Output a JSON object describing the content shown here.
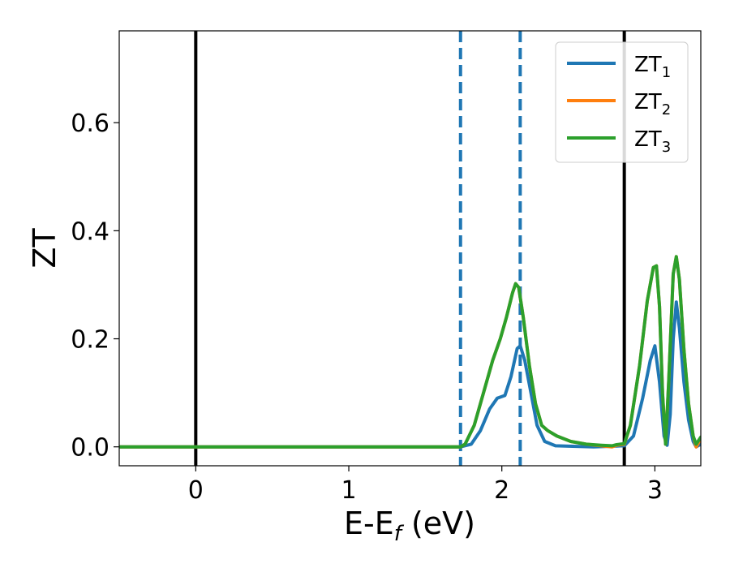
{
  "chart_data": {
    "type": "line",
    "title": "",
    "xlabel": "E-E",
    "xlabel_sub": "f",
    "xlabel_unit": " (eV)",
    "ylabel": "ZT",
    "xlim": [
      -0.5,
      3.3
    ],
    "ylim": [
      -0.035,
      0.77
    ],
    "x_ticks": [
      0,
      1,
      2,
      3
    ],
    "x_tick_labels": [
      "0",
      "1",
      "2",
      "3"
    ],
    "y_ticks": [
      0.0,
      0.2,
      0.4,
      0.6
    ],
    "y_tick_labels": [
      "0.0",
      "0.2",
      "0.4",
      "0.6"
    ],
    "grid": false,
    "legend": {
      "position": "top-right",
      "entries": [
        {
          "label": "ZT",
          "sub": "1"
        },
        {
          "label": "ZT",
          "sub": "2"
        },
        {
          "label": "ZT",
          "sub": "3"
        }
      ]
    },
    "reference_lines": {
      "solid_black_x": [
        0.0,
        2.8
      ],
      "dashed_blue_x": [
        1.73,
        2.12
      ]
    },
    "series": [
      {
        "name": "ZT1",
        "color": "#1f77b4",
        "points": [
          [
            -0.5,
            0
          ],
          [
            1.73,
            0
          ],
          [
            1.8,
            0.005
          ],
          [
            1.86,
            0.03
          ],
          [
            1.92,
            0.07
          ],
          [
            1.97,
            0.09
          ],
          [
            2.02,
            0.095
          ],
          [
            2.06,
            0.13
          ],
          [
            2.1,
            0.182
          ],
          [
            2.12,
            0.187
          ],
          [
            2.15,
            0.16
          ],
          [
            2.19,
            0.1
          ],
          [
            2.23,
            0.04
          ],
          [
            2.28,
            0.01
          ],
          [
            2.35,
            0.002
          ],
          [
            2.6,
            0
          ],
          [
            2.8,
            0.002
          ],
          [
            2.86,
            0.02
          ],
          [
            2.92,
            0.09
          ],
          [
            2.97,
            0.16
          ],
          [
            3.0,
            0.187
          ],
          [
            3.03,
            0.12
          ],
          [
            3.06,
            0.02
          ],
          [
            3.08,
            0.003
          ],
          [
            3.1,
            0.06
          ],
          [
            3.12,
            0.2
          ],
          [
            3.14,
            0.268
          ],
          [
            3.16,
            0.22
          ],
          [
            3.19,
            0.12
          ],
          [
            3.22,
            0.05
          ],
          [
            3.25,
            0.01
          ],
          [
            3.27,
            0
          ],
          [
            3.3,
            0.005
          ]
        ]
      },
      {
        "name": "ZT2",
        "color": "#ff7f0e",
        "points": [
          [
            -0.5,
            0
          ],
          [
            1.73,
            0
          ],
          [
            1.76,
            0.005
          ],
          [
            1.82,
            0.04
          ],
          [
            1.88,
            0.1
          ],
          [
            1.94,
            0.16
          ],
          [
            1.99,
            0.2
          ],
          [
            2.03,
            0.24
          ],
          [
            2.07,
            0.285
          ],
          [
            2.09,
            0.302
          ],
          [
            2.11,
            0.295
          ],
          [
            2.14,
            0.24
          ],
          [
            2.18,
            0.15
          ],
          [
            2.22,
            0.08
          ],
          [
            2.26,
            0.04
          ],
          [
            2.3,
            0.03
          ],
          [
            2.36,
            0.02
          ],
          [
            2.45,
            0.01
          ],
          [
            2.55,
            0.005
          ],
          [
            2.65,
            0.002
          ],
          [
            2.72,
            0
          ],
          [
            2.75,
            0.003
          ],
          [
            2.8,
            0.005
          ],
          [
            2.84,
            0.04
          ],
          [
            2.9,
            0.15
          ],
          [
            2.95,
            0.27
          ],
          [
            2.99,
            0.332
          ],
          [
            3.01,
            0.335
          ],
          [
            3.03,
            0.26
          ],
          [
            3.05,
            0.1
          ],
          [
            3.07,
            0.005
          ],
          [
            3.09,
            0.12
          ],
          [
            3.12,
            0.32
          ],
          [
            3.14,
            0.352
          ],
          [
            3.16,
            0.31
          ],
          [
            3.19,
            0.18
          ],
          [
            3.22,
            0.08
          ],
          [
            3.25,
            0.02
          ],
          [
            3.27,
            0
          ],
          [
            3.3,
            0.015
          ]
        ]
      },
      {
        "name": "ZT3",
        "color": "#2ca02c",
        "points": [
          [
            -0.5,
            0
          ],
          [
            1.73,
            0
          ],
          [
            1.76,
            0.005
          ],
          [
            1.82,
            0.04
          ],
          [
            1.88,
            0.1
          ],
          [
            1.94,
            0.16
          ],
          [
            1.99,
            0.2
          ],
          [
            2.03,
            0.24
          ],
          [
            2.07,
            0.285
          ],
          [
            2.09,
            0.302
          ],
          [
            2.11,
            0.295
          ],
          [
            2.14,
            0.24
          ],
          [
            2.18,
            0.15
          ],
          [
            2.22,
            0.08
          ],
          [
            2.26,
            0.04
          ],
          [
            2.3,
            0.03
          ],
          [
            2.36,
            0.02
          ],
          [
            2.45,
            0.01
          ],
          [
            2.55,
            0.005
          ],
          [
            2.65,
            0.003
          ],
          [
            2.72,
            0.002
          ],
          [
            2.75,
            0.004
          ],
          [
            2.8,
            0.006
          ],
          [
            2.84,
            0.04
          ],
          [
            2.9,
            0.15
          ],
          [
            2.95,
            0.27
          ],
          [
            2.99,
            0.332
          ],
          [
            3.01,
            0.335
          ],
          [
            3.03,
            0.26
          ],
          [
            3.05,
            0.1
          ],
          [
            3.07,
            0.005
          ],
          [
            3.09,
            0.12
          ],
          [
            3.12,
            0.32
          ],
          [
            3.14,
            0.352
          ],
          [
            3.16,
            0.31
          ],
          [
            3.19,
            0.18
          ],
          [
            3.22,
            0.08
          ],
          [
            3.25,
            0.02
          ],
          [
            3.27,
            0.005
          ],
          [
            3.3,
            0.018
          ]
        ]
      }
    ]
  }
}
